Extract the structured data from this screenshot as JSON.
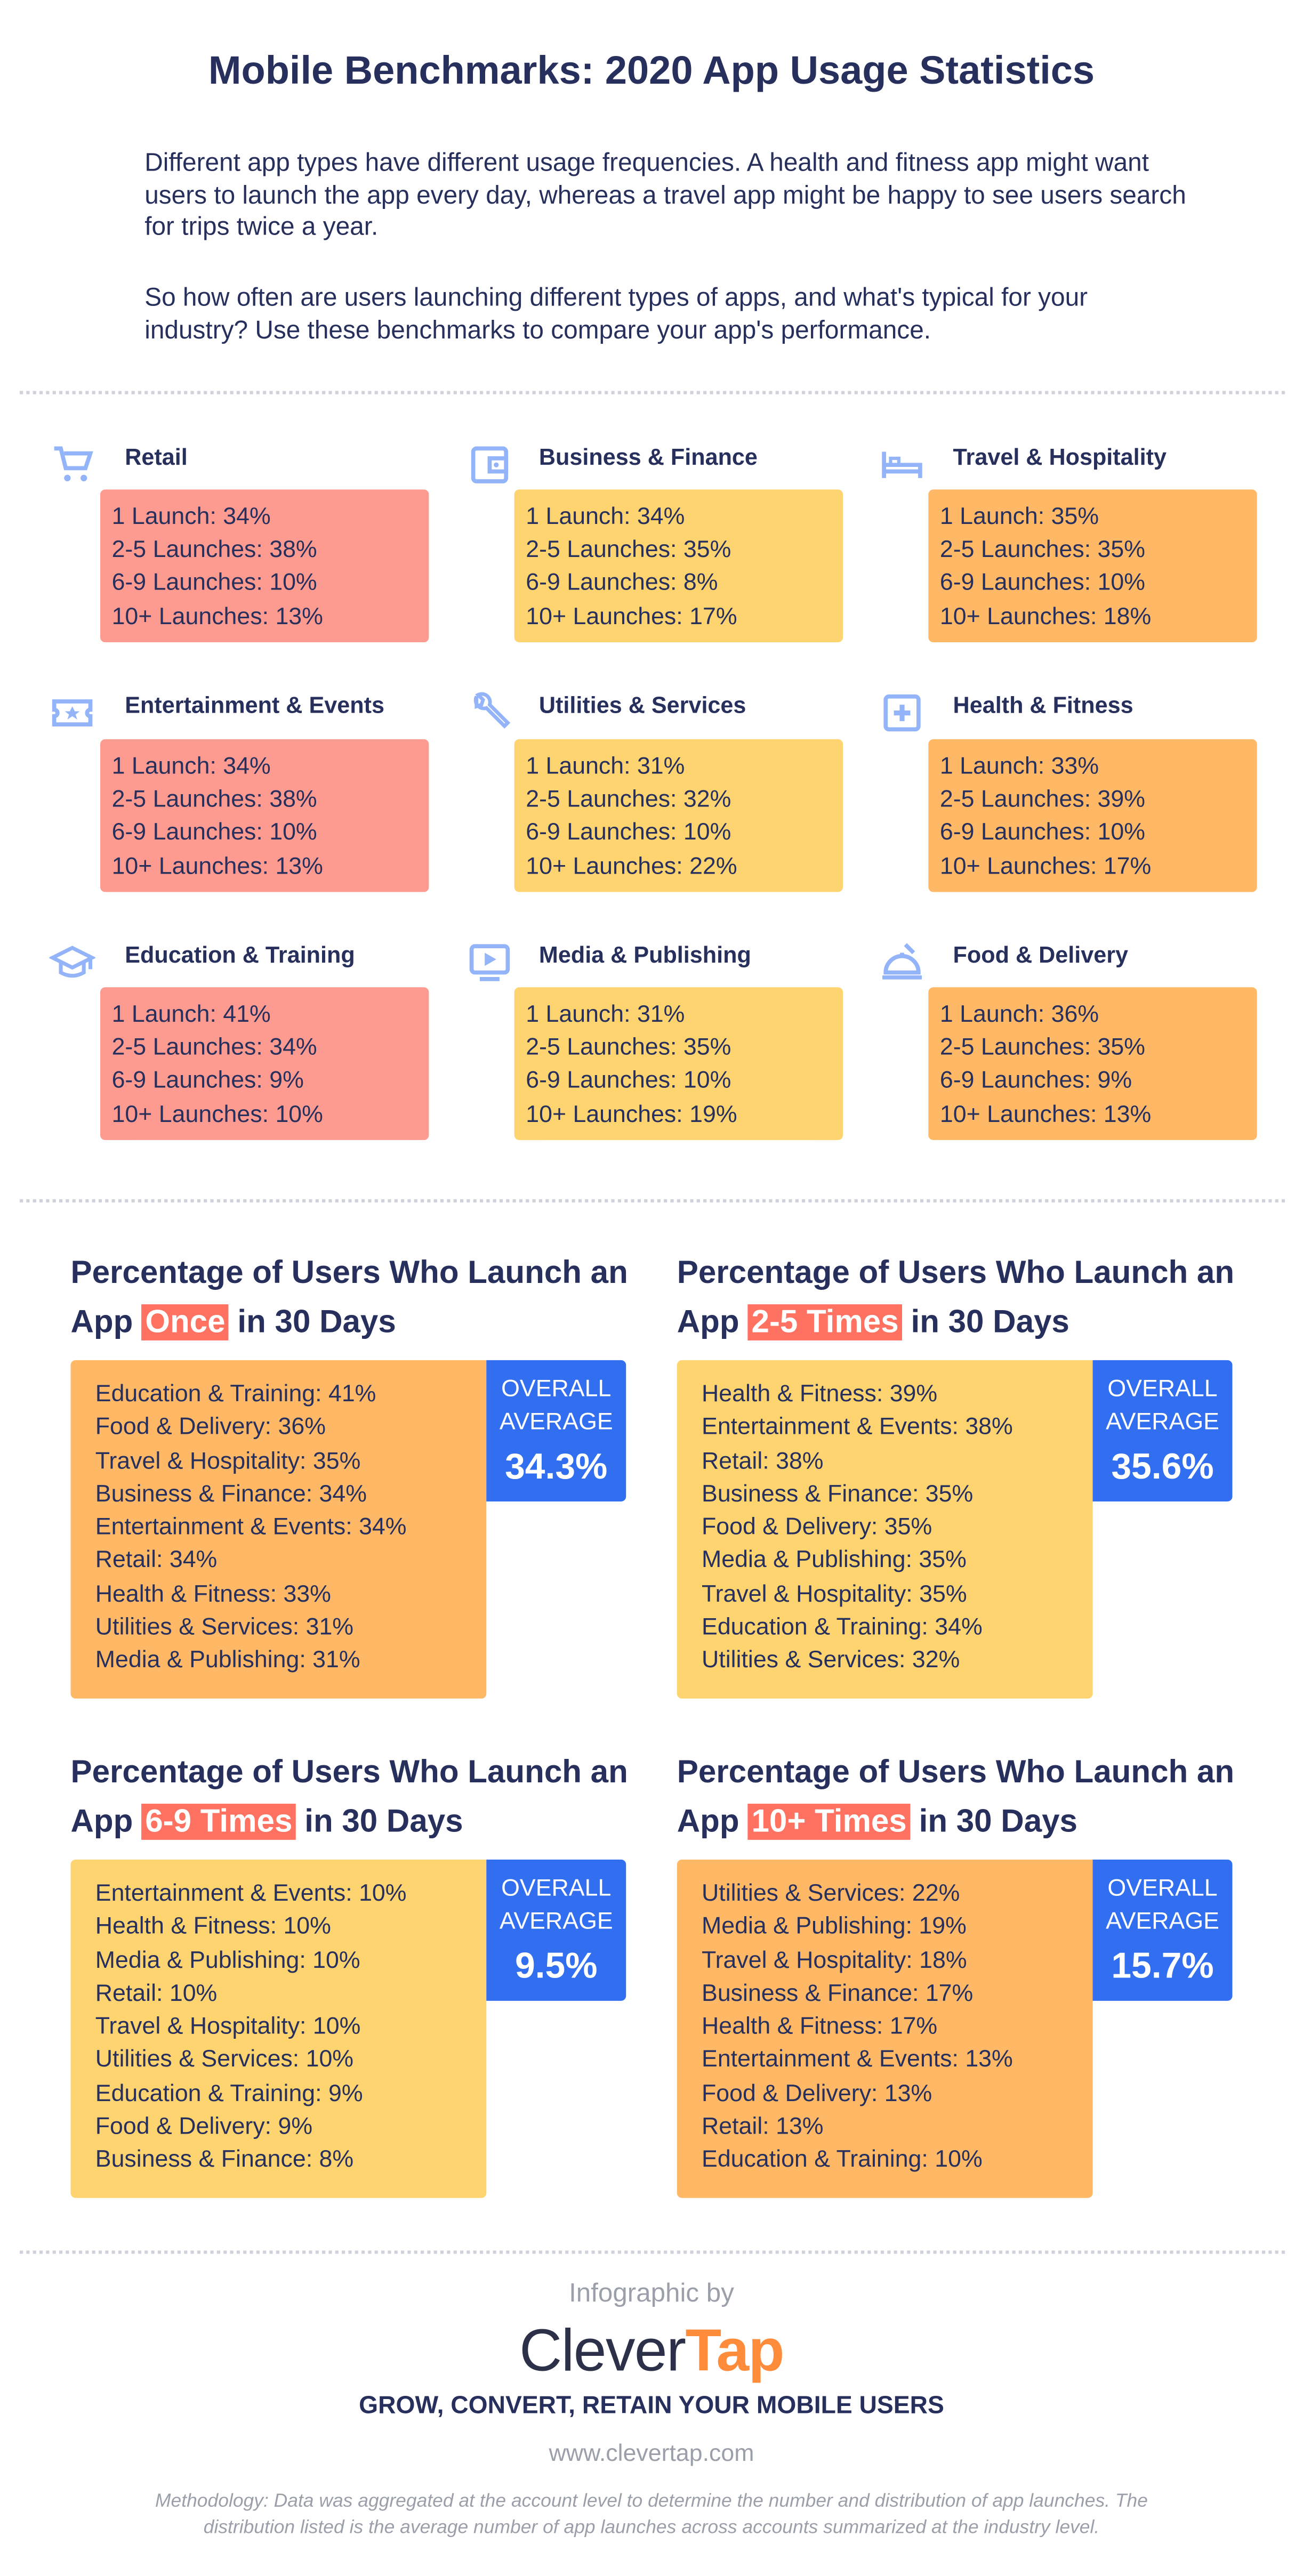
{
  "title": "Mobile Benchmarks: 2020 App Usage Statistics",
  "intro": [
    "Different app types have different usage frequencies. A health and fitness app might want users to launch the app every day, whereas a travel app might be happy to see users search for trips twice a year.",
    "So how often are users launching different types of apps, and what's typical for your industry? Use these benchmarks to compare your app's performance."
  ],
  "colors": {
    "text": "#272f5c",
    "pink": "#fe9b90",
    "yellow": "#fed470",
    "orange": "#feb866",
    "highlight": "#ff7262",
    "blue": "#316ff0",
    "icon": "#93b4f8",
    "brand_orange": "#ff8c3a"
  },
  "categories": [
    {
      "name": "Retail",
      "icon": "cart-icon",
      "color": "pink",
      "lines": [
        "1 Launch: 34%",
        "2-5 Launches: 38%",
        "6-9 Launches: 10%",
        "10+ Launches: 13%"
      ]
    },
    {
      "name": "Business & Finance",
      "icon": "wallet-icon",
      "color": "yellow",
      "lines": [
        "1 Launch: 34%",
        "2-5 Launches: 35%",
        "6-9 Launches: 8%",
        "10+ Launches: 17%"
      ]
    },
    {
      "name": "Travel & Hospitality",
      "icon": "bed-icon",
      "color": "orange",
      "lines": [
        "1 Launch: 35%",
        "2-5 Launches: 35%",
        "6-9 Launches: 10%",
        "10+ Launches: 18%"
      ]
    },
    {
      "name": "Entertainment & Events",
      "icon": "ticket-icon",
      "color": "pink",
      "lines": [
        "1 Launch: 34%",
        "2-5 Launches: 38%",
        "6-9 Launches: 10%",
        "10+ Launches: 13%"
      ]
    },
    {
      "name": "Utilities & Services",
      "icon": "wrench-icon",
      "color": "yellow",
      "lines": [
        "1 Launch: 31%",
        "2-5 Launches: 32%",
        "6-9 Launches: 10%",
        "10+ Launches: 22%"
      ]
    },
    {
      "name": "Health & Fitness",
      "icon": "medical-cross-icon",
      "color": "orange",
      "lines": [
        "1 Launch: 33%",
        "2-5 Launches: 39%",
        "6-9 Launches: 10%",
        "10+ Launches: 17%"
      ]
    },
    {
      "name": "Education & Training",
      "icon": "graduation-cap-icon",
      "color": "pink",
      "lines": [
        "1 Launch: 41%",
        "2-5 Launches: 34%",
        "6-9 Launches: 9%",
        "10+ Launches: 10%"
      ]
    },
    {
      "name": "Media & Publishing",
      "icon": "video-icon",
      "color": "yellow",
      "lines": [
        "1 Launch: 31%",
        "2-5 Launches: 35%",
        "6-9 Launches: 10%",
        "10+ Launches: 19%"
      ]
    },
    {
      "name": "Food & Delivery",
      "icon": "food-cloche-icon",
      "color": "orange",
      "lines": [
        "1 Launch: 36%",
        "2-5 Launches: 35%",
        "6-9 Launches: 9%",
        "10+ Launches: 13%"
      ]
    }
  ],
  "rankings": [
    {
      "title_pre": "Percentage of Users Who Launch an App ",
      "highlight": "Once",
      "title_post": " in 30 Days",
      "color": "orange",
      "avg_label1": "OVERALL",
      "avg_label2": "AVERAGE",
      "avg_value": "34.3%",
      "items": [
        "Education & Training: 41%",
        "Food & Delivery: 36%",
        "Travel & Hospitality: 35%",
        "Business & Finance: 34%",
        "Entertainment & Events: 34%",
        "Retail: 34%",
        "Health & Fitness: 33%",
        "Utilities & Services: 31%",
        "Media & Publishing: 31%"
      ]
    },
    {
      "title_pre": "Percentage of Users Who Launch an App ",
      "highlight": "2-5 Times",
      "title_post": " in 30 Days",
      "color": "yellow",
      "avg_label1": "OVERALL",
      "avg_label2": "AVERAGE",
      "avg_value": "35.6%",
      "items": [
        "Health & Fitness: 39%",
        "Entertainment & Events: 38%",
        "Retail: 38%",
        "Business & Finance: 35%",
        "Food & Delivery: 35%",
        "Media & Publishing: 35%",
        "Travel & Hospitality: 35%",
        "Education & Training: 34%",
        "Utilities & Services: 32%"
      ]
    },
    {
      "title_pre": "Percentage of Users Who Launch an App ",
      "highlight": "6-9 Times",
      "title_post": " in 30 Days",
      "color": "yellow",
      "avg_label1": "OVERALL",
      "avg_label2": "AVERAGE",
      "avg_value": "9.5%",
      "items": [
        "Entertainment & Events: 10%",
        "Health & Fitness: 10%",
        "Media & Publishing: 10%",
        "Retail: 10%",
        "Travel & Hospitality: 10%",
        "Utilities & Services: 10%",
        "Education & Training: 9%",
        "Food & Delivery: 9%",
        "Business & Finance: 8%"
      ]
    },
    {
      "title_pre": "Percentage of Users Who Launch an App ",
      "highlight": "10+ Times",
      "title_post": " in 30 Days",
      "color": "orange",
      "avg_label1": "OVERALL",
      "avg_label2": "AVERAGE",
      "avg_value": "15.7%",
      "items": [
        "Utilities & Services: 22%",
        "Media & Publishing: 19%",
        "Travel & Hospitality: 18%",
        "Business & Finance: 17%",
        "Health & Fitness: 17%",
        "Entertainment & Events: 13%",
        "Food & Delivery: 13%",
        "Retail: 13%",
        "Education & Training: 10%"
      ]
    }
  ],
  "footer": {
    "byline": "Infographic by",
    "logo_part1": "Clever",
    "logo_part2": "Tap",
    "tagline": "GROW, CONVERT, RETAIN YOUR MOBILE USERS",
    "url": "www.clevertap.com",
    "methodology": [
      "Methodology: Data was aggregated at the account level to determine the number and distribution of app launches. The",
      "distribution listed is the average number of app launches across accounts summarized at the industry level."
    ]
  }
}
